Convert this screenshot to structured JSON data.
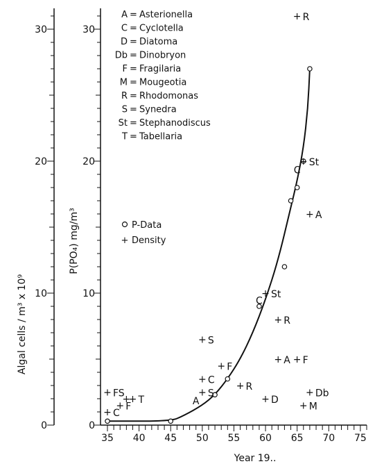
{
  "chart_data": {
    "type": "scatter",
    "xlabel": "Year 19..",
    "ylabel_left": "Algal cells / m³ x 10⁹",
    "ylabel_right": "P(PO₄)  mg/m³",
    "xlim": [
      35,
      76
    ],
    "ylim_left": [
      0,
      31
    ],
    "ylim_right": [
      0,
      31
    ],
    "x_ticks": [
      35,
      40,
      45,
      50,
      55,
      60,
      65,
      70,
      75
    ],
    "y_ticks": [
      0,
      10,
      20,
      30
    ],
    "grid": false,
    "legend": {
      "placement": "left",
      "entries": [
        {
          "symbol": "○",
          "label": "P-Data"
        },
        {
          "symbol": "+",
          "label": "Density"
        }
      ]
    },
    "species_key": [
      {
        "code": "A",
        "name": "Asterionella"
      },
      {
        "code": "C",
        "name": "Cyclotella"
      },
      {
        "code": "D",
        "name": "Diatoma"
      },
      {
        "code": "Db",
        "name": "Dinobryon"
      },
      {
        "code": "F",
        "name": "Fragilaria"
      },
      {
        "code": "M",
        "name": "Mougeotia"
      },
      {
        "code": "R",
        "name": "Rhodomonas"
      },
      {
        "code": "S",
        "name": "Synedra"
      },
      {
        "code": "St",
        "name": "Stephanodiscus"
      },
      {
        "code": "T",
        "name": "Tabellaria"
      }
    ],
    "p_data": [
      {
        "x": 35,
        "y": 0.3
      },
      {
        "x": 45,
        "y": 0.3
      },
      {
        "x": 52,
        "y": 2.3
      },
      {
        "x": 54,
        "y": 3.5
      },
      {
        "x": 59,
        "y": 9.0
      },
      {
        "x": 63,
        "y": 12.0
      },
      {
        "x": 64,
        "y": 17.0
      },
      {
        "x": 65,
        "y": 18.0
      },
      {
        "x": 66,
        "y": 20.0
      },
      {
        "x": 67,
        "y": 27.0
      }
    ],
    "p_curve": [
      [
        35,
        0.3
      ],
      [
        45,
        0.3
      ],
      [
        47,
        0.7
      ],
      [
        50,
        1.5
      ],
      [
        52,
        2.3
      ],
      [
        54,
        3.5
      ],
      [
        56,
        5.0
      ],
      [
        58,
        7.0
      ],
      [
        60,
        9.5
      ],
      [
        62,
        12.5
      ],
      [
        64,
        16.5
      ],
      [
        65,
        18.5
      ],
      [
        66,
        21.0
      ],
      [
        66.7,
        24.0
      ],
      [
        67,
        27.0
      ]
    ],
    "density": [
      {
        "x": 35,
        "y": 2.5,
        "label": "FS"
      },
      {
        "x": 35,
        "y": 1.0,
        "label": "C"
      },
      {
        "x": 37,
        "y": 1.5,
        "label": "F"
      },
      {
        "x": 38,
        "y": 2.0,
        "label": ""
      },
      {
        "x": 39,
        "y": 2.0,
        "label": "T"
      },
      {
        "x": 50,
        "y": 6.5,
        "label": "S"
      },
      {
        "x": 50,
        "y": 3.5,
        "label": "C"
      },
      {
        "x": 53,
        "y": 4.5,
        "label": "F"
      },
      {
        "x": 56,
        "y": 3.0,
        "label": "R"
      },
      {
        "x": 60,
        "y": 2.0,
        "label": "D"
      },
      {
        "x": 60,
        "y": 10.0,
        "label": "St"
      },
      {
        "x": 62,
        "y": 8.0,
        "label": "R"
      },
      {
        "x": 62,
        "y": 5.0,
        "label": "A"
      },
      {
        "x": 65,
        "y": 5.0,
        "label": "F"
      },
      {
        "x": 65,
        "y": 31.0,
        "label": "R"
      },
      {
        "x": 66,
        "y": 20.0,
        "label": "St"
      },
      {
        "x": 67,
        "y": 16.0,
        "label": "A"
      },
      {
        "x": 66,
        "y": 1.5,
        "label": "M"
      },
      {
        "x": 67,
        "y": 2.5,
        "label": "Db"
      },
      {
        "x": 50,
        "y": 2.5,
        "label": "S"
      }
    ],
    "extra_labels": [
      {
        "x": 60,
        "y": 9.5,
        "label": "C"
      },
      {
        "x": 66,
        "y": 19.4,
        "label": "C"
      },
      {
        "x": 50,
        "y": 1.9,
        "label": "A"
      }
    ]
  }
}
